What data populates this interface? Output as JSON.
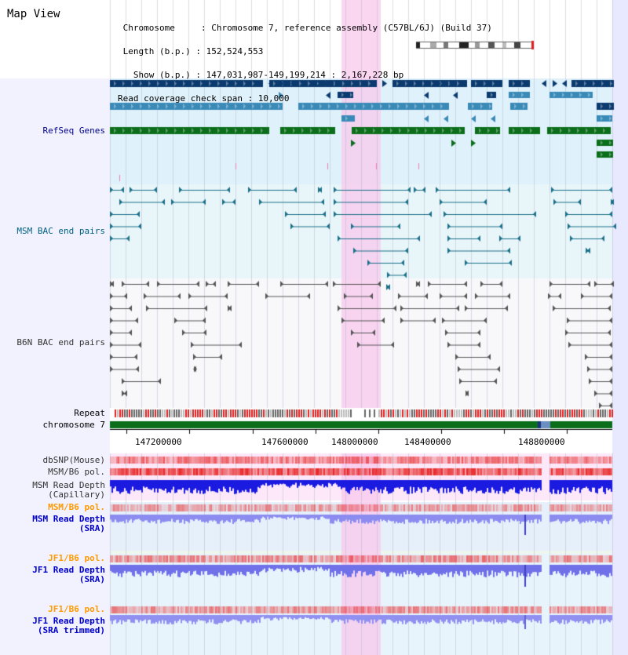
{
  "header": {
    "title": "Map View",
    "info_lines": [
      " Chromosome     : Chromosome 7, reference assembly (C57BL/6J) (Build 37)",
      " Length (b.p.) : 152,524,553",
      "   Show (b.p.) : 147,031,987-149,199,214 : 2,167,228 bp",
      "Read coverage check span : 10,000"
    ]
  },
  "tracks": {
    "refseq": {
      "label": "RefSeq Genes",
      "color": "#00008b"
    },
    "msm_bac": {
      "label": "MSM BAC end pairs",
      "color": "#006080"
    },
    "b6n_bac": {
      "label": "B6N BAC end pairs",
      "color": "#333333"
    },
    "repeat": {
      "label": "Repeat"
    },
    "chromosome": {
      "label": "chromosome 7"
    },
    "dbsnp": {
      "label": "dbSNP(Mouse)"
    },
    "msm_b6_pol": {
      "label": "MSM/B6 pol."
    },
    "msm_read_depth_cap": {
      "label": "MSM Read Depth\n(Capillary)"
    },
    "msm_b6_pol_sra": {
      "label": "MSM/B6 pol.",
      "color": "#ff9900"
    },
    "msm_read_depth_sra": {
      "label": "MSM Read Depth\n(SRA)",
      "color": "#0000cc"
    },
    "jf1_b6_pol": {
      "label": "JF1/B6 pol.",
      "color": "#ff9900"
    },
    "jf1_read_depth_sra": {
      "label": "JF1 Read Depth\n(SRA)",
      "color": "#0000cc"
    },
    "jf1_b6_pol_trim": {
      "label": "JF1/B6 pol.",
      "color": "#ff9900"
    },
    "jf1_read_depth_trim": {
      "label": "JF1 Read Depth\n(SRA trimmed)",
      "color": "#0000cc"
    }
  },
  "axis": {
    "ticks": [
      "147200000",
      "147600000",
      "148000000",
      "148400000",
      "148800000"
    ]
  },
  "colors": {
    "highlight": "#f9d8f0",
    "refseq_dark": "#0a3a6e",
    "refseq_mid": "#3a8ab8",
    "refseq_green": "#0a6e1a",
    "msm_bg": "#e8f6fa",
    "chromosome_green": "#0a6e1a",
    "snp_red": "#e83030",
    "depth_blue": "#2020e0",
    "depth_light": "#8080f0"
  }
}
